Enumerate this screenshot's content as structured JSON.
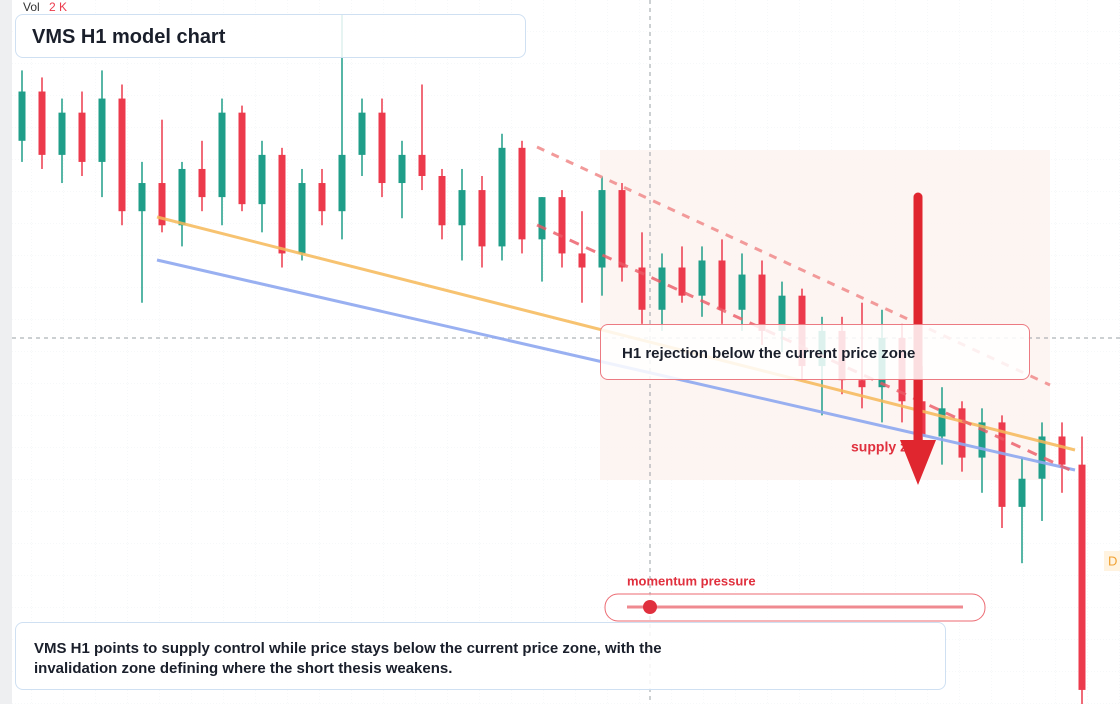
{
  "chart_data": {
    "type": "candlestick",
    "title": "VMS H1 model chart",
    "volume_label": "Vol",
    "volume_value": "2 K",
    "annotation": "H1 rejection below the current price zone",
    "zone_label": "supply zone",
    "gauge_label": "momentum pressure",
    "edge_label": "D",
    "summary": "VMS H1 points to supply control while price stays below the current price zone, with the invalidation zone defining where the short thesis weakens.",
    "up_color": "#1f9e89",
    "down_color": "#ec3a4c",
    "ylim": [
      0,
      100
    ],
    "open": [
      80,
      87,
      78,
      84,
      77,
      86,
      70,
      74,
      68,
      76,
      72,
      84,
      71,
      78,
      64,
      74,
      70,
      78,
      84,
      74,
      78,
      75,
      68,
      73,
      65,
      79,
      66,
      72,
      64,
      62,
      73,
      62,
      56,
      62,
      58,
      63,
      56,
      61,
      53,
      58,
      48,
      53,
      46,
      45,
      52,
      43,
      38,
      42,
      35,
      40,
      28,
      32,
      38,
      34
    ],
    "high": [
      90,
      89,
      86,
      87,
      90,
      88,
      77,
      83,
      77,
      80,
      86,
      85,
      80,
      79,
      76,
      76,
      98,
      86,
      86,
      80,
      88,
      76,
      76,
      75,
      81,
      80,
      72,
      73,
      70,
      75,
      74,
      67,
      64,
      65,
      65,
      66,
      64,
      63,
      60,
      59,
      55,
      55,
      57,
      56,
      54,
      48,
      45,
      43,
      42,
      41,
      35,
      40,
      40,
      38
    ],
    "low": [
      77,
      76,
      74,
      75,
      72,
      68,
      57,
      67,
      65,
      70,
      68,
      70,
      67,
      62,
      63,
      68,
      66,
      75,
      72,
      69,
      73,
      66,
      63,
      62,
      63,
      64,
      60,
      62,
      57,
      58,
      60,
      54,
      53,
      57,
      55,
      54,
      53,
      51,
      50,
      46,
      41,
      44,
      42,
      40,
      40,
      36,
      34,
      33,
      30,
      25,
      20,
      26,
      30,
      0
    ],
    "close": [
      87,
      78,
      84,
      77,
      86,
      70,
      74,
      68,
      76,
      72,
      84,
      71,
      78,
      64,
      74,
      70,
      78,
      84,
      74,
      78,
      75,
      68,
      73,
      65,
      79,
      66,
      72,
      64,
      62,
      73,
      62,
      56,
      62,
      58,
      63,
      56,
      61,
      53,
      58,
      48,
      53,
      46,
      45,
      52,
      43,
      38,
      42,
      35,
      40,
      28,
      32,
      38,
      34,
      2
    ]
  }
}
